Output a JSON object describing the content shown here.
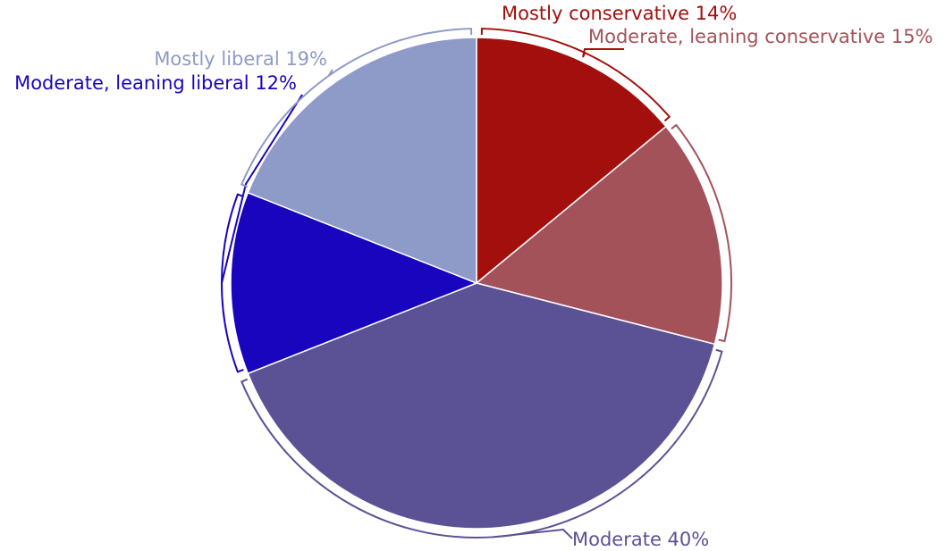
{
  "chart_data": {
    "type": "pie",
    "start_angle": "12 o'clock",
    "direction": "clockwise",
    "slices": [
      {
        "label": "Mostly conservative",
        "value": 14,
        "display": "Mostly conservative 14%",
        "color": "#a30f0c"
      },
      {
        "label": "Moderate, leaning conservative",
        "value": 15,
        "display": "Moderate, leaning conservative 15%",
        "color": "#a3525a"
      },
      {
        "label": "Moderate",
        "value": 40,
        "display": "Moderate 40%",
        "color": "#5b5296"
      },
      {
        "label": "Moderate, leaning liberal",
        "value": 12,
        "display": "Moderate, leaning liberal 12%",
        "color": "#1905bd"
      },
      {
        "label": "Mostly liberal",
        "value": 19,
        "display": "Mostly liberal 19%",
        "color": "#8e9ac7"
      }
    ]
  }
}
